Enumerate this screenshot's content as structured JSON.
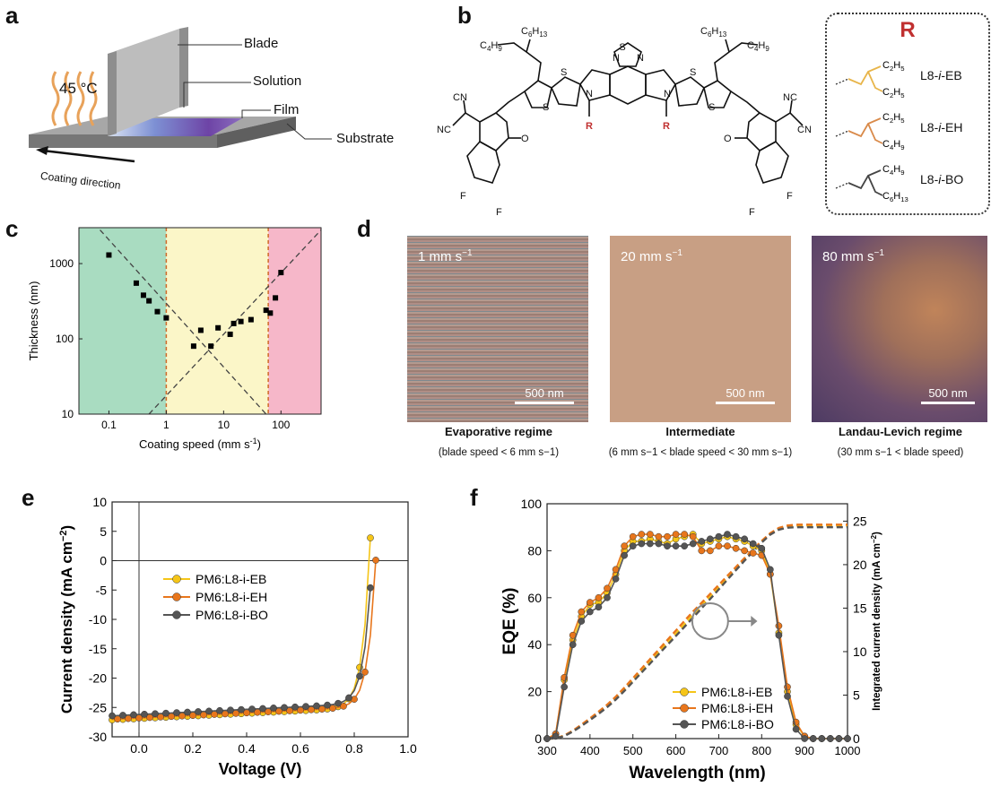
{
  "panels": {
    "a": "a",
    "b": "b",
    "c": "c",
    "d": "d",
    "e": "e",
    "f": "f"
  },
  "panel_a": {
    "temperature": "45 °C",
    "blade": "Blade",
    "solution": "Solution",
    "film": "Film",
    "substrate": "Substrate",
    "direction": "Coating direction"
  },
  "panel_b": {
    "r_title": "R",
    "substituents": [
      {
        "name": "L8-i-EB",
        "chains": [
          "C2H5",
          "C2H5"
        ],
        "color": "#e8b54a"
      },
      {
        "name": "L8-i-EH",
        "chains": [
          "C2H5",
          "C4H9"
        ],
        "color": "#d98a4a"
      },
      {
        "name": "L8-i-BO",
        "chains": [
          "C4H9",
          "C6H13"
        ],
        "color": "#444444"
      }
    ],
    "atoms": {
      "c4h9": "C4H9",
      "c6h13": "C6H13",
      "s": "S",
      "n": "N",
      "r": "R",
      "o": "O",
      "f": "F",
      "cn": "CN",
      "nc": "NC"
    }
  },
  "panel_d": {
    "images": [
      {
        "speed": "1 mm s",
        "scale": "500 nm",
        "title": "Evaporative regime",
        "subtitle": "(blade speed < 6 mm s−1)"
      },
      {
        "speed": "20 mm s",
        "scale": "500 nm",
        "title": "Intermediate",
        "subtitle": "(6 mm s−1 < blade speed < 30 mm s−1)"
      },
      {
        "speed": "80 mm s",
        "scale": "500 nm",
        "title": "Landau-Levich regime",
        "subtitle": "(30 mm s−1 < blade speed)"
      }
    ],
    "exp": "−1"
  },
  "chart_data": [
    {
      "panel": "c",
      "type": "scatter",
      "xlabel": "Coating speed (mm s",
      "xlabel_exp": "-1",
      "xlabel_end": ")",
      "ylabel": "Thickness (nm)",
      "xscale": "log",
      "yscale": "log",
      "xlim": [
        0.03,
        500
      ],
      "ylim": [
        10,
        3000
      ],
      "x_ticks": [
        "0.1",
        "1",
        "10",
        "100"
      ],
      "y_ticks": [
        "10",
        "100",
        "1000"
      ],
      "regions": [
        {
          "from": 0.03,
          "to": 1,
          "color": "#a9dcc1"
        },
        {
          "from": 1,
          "to": 60,
          "color": "#fbf6c8"
        },
        {
          "from": 60,
          "to": 500,
          "color": "#f6b7c9"
        }
      ],
      "region_boundaries": [
        1,
        60
      ],
      "points": [
        [
          0.1,
          1300
        ],
        [
          0.3,
          550
        ],
        [
          0.4,
          380
        ],
        [
          0.5,
          320
        ],
        [
          0.7,
          230
        ],
        [
          1.0,
          190
        ],
        [
          3,
          80
        ],
        [
          4,
          130
        ],
        [
          6,
          80
        ],
        [
          8,
          140
        ],
        [
          13,
          115
        ],
        [
          15,
          160
        ],
        [
          20,
          170
        ],
        [
          30,
          180
        ],
        [
          55,
          240
        ],
        [
          65,
          220
        ],
        [
          80,
          350
        ],
        [
          100,
          760
        ]
      ],
      "fit_lines": [
        {
          "from": [
            0.07,
            2800
          ],
          "to": [
            55,
            10
          ]
        },
        {
          "from": [
            0.5,
            10
          ],
          "to": [
            500,
            2800
          ]
        }
      ]
    },
    {
      "panel": "e",
      "type": "line",
      "xlabel": "Voltage (V)",
      "ylabel": "Current density (mA cm",
      "ylabel_exp": "−2",
      "ylabel_end": ")",
      "xlim": [
        -0.1,
        1.0
      ],
      "ylim": [
        -30,
        10
      ],
      "x_ticks": [
        "0.0",
        "0.2",
        "0.4",
        "0.6",
        "0.8",
        "1.0"
      ],
      "y_ticks": [
        "10",
        "5",
        "0",
        "-5",
        "-10",
        "-15",
        "-20",
        "-25",
        "-30"
      ],
      "legend_position": "left-middle",
      "series": [
        {
          "name": "PM6:L8-i-EB",
          "color": "#f5c518",
          "jsc": 26.9,
          "voc": 0.858,
          "knee": 0.76
        },
        {
          "name": "PM6:L8-i-EH",
          "color": "#e8761c",
          "jsc": 26.8,
          "voc": 0.882,
          "knee": 0.78
        },
        {
          "name": "PM6:L8-i-BO",
          "color": "#555555",
          "jsc": 26.2,
          "voc": 0.868,
          "knee": 0.73
        }
      ]
    },
    {
      "panel": "f",
      "type": "line",
      "xlabel": "Wavelength (nm)",
      "ylabel": "EQE (%)",
      "ylabel_right": "Integrated current density (mA cm",
      "ylabel_right_exp": "−2",
      "ylabel_right_end": ")",
      "xlim": [
        300,
        1000
      ],
      "ylim": [
        0,
        100
      ],
      "ylim_right": [
        0,
        27
      ],
      "x_ticks": [
        "300",
        "400",
        "500",
        "600",
        "700",
        "800",
        "900",
        "1000"
      ],
      "y_ticks": [
        "0",
        "20",
        "40",
        "60",
        "80",
        "100"
      ],
      "y_ticks_right": [
        "0",
        "5",
        "10",
        "15",
        "20",
        "25"
      ],
      "legend_position": "bottom-center",
      "series": [
        {
          "name": "PM6:L8-i-EB",
          "color": "#f5c518",
          "x": [
            300,
            320,
            340,
            360,
            380,
            400,
            420,
            440,
            460,
            480,
            500,
            520,
            540,
            560,
            580,
            600,
            620,
            640,
            660,
            680,
            700,
            720,
            740,
            760,
            780,
            800,
            820,
            840,
            860,
            880,
            900,
            920,
            940,
            960,
            980,
            1000
          ],
          "y": [
            0,
            2,
            25,
            42,
            52,
            57,
            58,
            62,
            70,
            80,
            84,
            84,
            85,
            84,
            83,
            85,
            86,
            87,
            83,
            84,
            85,
            86,
            85,
            84,
            82,
            80,
            70,
            45,
            20,
            6,
            1,
            0,
            0,
            0,
            0,
            0
          ]
        },
        {
          "name": "PM6:L8-i-EH",
          "color": "#e8761c",
          "x": [
            300,
            320,
            340,
            360,
            380,
            400,
            420,
            440,
            460,
            480,
            500,
            520,
            540,
            560,
            580,
            600,
            620,
            640,
            660,
            680,
            700,
            720,
            740,
            760,
            780,
            800,
            820,
            840,
            860,
            880,
            900,
            920,
            940,
            960,
            980,
            1000
          ],
          "y": [
            0,
            2,
            26,
            44,
            54,
            58,
            60,
            64,
            72,
            82,
            86,
            87,
            87,
            86,
            86,
            87,
            87,
            86,
            80,
            80,
            82,
            82,
            81,
            80,
            79,
            78,
            70,
            48,
            22,
            7,
            1,
            0,
            0,
            0,
            0,
            0
          ]
        },
        {
          "name": "PM6:L8-i-BO",
          "color": "#555555",
          "x": [
            300,
            320,
            340,
            360,
            380,
            400,
            420,
            440,
            460,
            480,
            500,
            520,
            540,
            560,
            580,
            600,
            620,
            640,
            660,
            680,
            700,
            720,
            740,
            760,
            780,
            800,
            820,
            840,
            860,
            880,
            900,
            920,
            940,
            960,
            980,
            1000
          ],
          "y": [
            0,
            1,
            22,
            40,
            50,
            54,
            56,
            60,
            68,
            78,
            82,
            83,
            83,
            83,
            82,
            82,
            82,
            83,
            84,
            85,
            86,
            87,
            86,
            85,
            83,
            81,
            72,
            44,
            18,
            4,
            0,
            0,
            0,
            0,
            0,
            0
          ]
        }
      ],
      "integrated_max": [
        24.5,
        24.6,
        24.3
      ]
    }
  ]
}
